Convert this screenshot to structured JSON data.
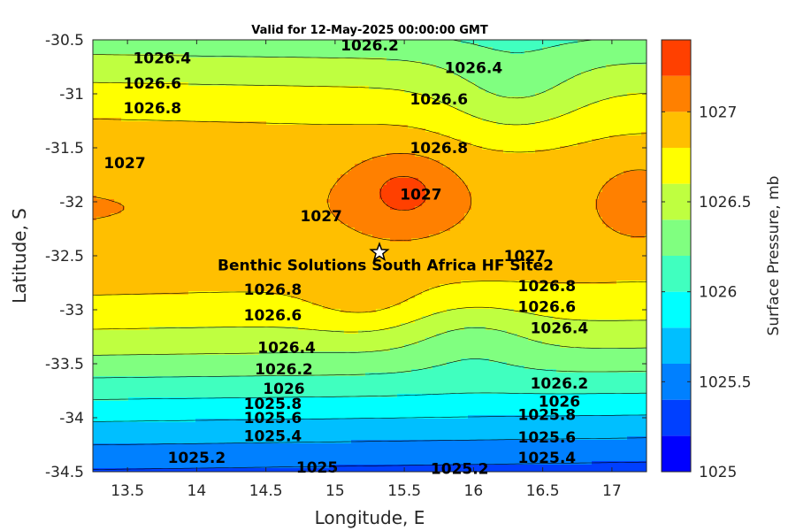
{
  "chart_data": {
    "type": "contour",
    "title": "Valid for 12-May-2025 00:00:00 GMT",
    "xlabel": "Longitude, E",
    "ylabel": "Latitude, S",
    "xlim": [
      13.25,
      17.25
    ],
    "ylim": [
      -34.5,
      -30.5
    ],
    "x_ticks": [
      "13.5",
      "14",
      "14.5",
      "15",
      "15.5",
      "16",
      "16.5",
      "17"
    ],
    "y_ticks": [
      "-30.5",
      "-31",
      "-31.5",
      "-32",
      "-32.5",
      "-33",
      "-33.5",
      "-34",
      "-34.5"
    ],
    "colorbar": {
      "label": "Surface Pressure, mb",
      "range": [
        1025,
        1027.4
      ],
      "ticks": [
        "1025",
        "1025.5",
        "1026",
        "1026.5",
        "1027"
      ],
      "levels": [
        1025,
        1025.2,
        1025.4,
        1025.6,
        1025.8,
        1026,
        1026.2,
        1026.4,
        1026.6,
        1026.8,
        1027,
        1027.2,
        1027.4
      ],
      "colors": [
        "#0000ff",
        "#0040ff",
        "#0080ff",
        "#00bfff",
        "#00ffff",
        "#40ffbf",
        "#80ff80",
        "#bfff40",
        "#ffff00",
        "#ffbf00",
        "#ff8000",
        "#ff4000",
        "#ff0000"
      ]
    },
    "contour_labels": [
      {
        "text": "1026.2",
        "lon": 15.25,
        "lat": -30.55
      },
      {
        "text": "1026.4",
        "lon": 13.75,
        "lat": -30.67
      },
      {
        "text": "1026.4",
        "lon": 16.0,
        "lat": -30.76
      },
      {
        "text": "1026.6",
        "lon": 13.68,
        "lat": -30.9
      },
      {
        "text": "1026.6",
        "lon": 15.75,
        "lat": -31.05
      },
      {
        "text": "1026.8",
        "lon": 13.68,
        "lat": -31.13
      },
      {
        "text": "1026.8",
        "lon": 15.75,
        "lat": -31.5
      },
      {
        "text": "1027",
        "lon": 13.48,
        "lat": -31.64
      },
      {
        "text": "1027",
        "lon": 15.62,
        "lat": -31.93
      },
      {
        "text": "1027",
        "lon": 14.9,
        "lat": -32.13
      },
      {
        "text": "1027",
        "lon": 16.37,
        "lat": -32.5
      },
      {
        "text": "1026.8",
        "lon": 14.55,
        "lat": -32.81
      },
      {
        "text": "1026.8",
        "lon": 16.53,
        "lat": -32.78
      },
      {
        "text": "1026.6",
        "lon": 14.55,
        "lat": -33.05
      },
      {
        "text": "1026.6",
        "lon": 16.53,
        "lat": -32.97
      },
      {
        "text": "1026.4",
        "lon": 14.65,
        "lat": -33.35
      },
      {
        "text": "1026.4",
        "lon": 16.62,
        "lat": -33.17
      },
      {
        "text": "1026.2",
        "lon": 14.63,
        "lat": -33.55
      },
      {
        "text": "1026.2",
        "lon": 16.62,
        "lat": -33.68
      },
      {
        "text": "1026",
        "lon": 14.63,
        "lat": -33.73
      },
      {
        "text": "1026",
        "lon": 16.62,
        "lat": -33.85
      },
      {
        "text": "1025.8",
        "lon": 14.55,
        "lat": -33.87
      },
      {
        "text": "1025.8",
        "lon": 16.53,
        "lat": -33.97
      },
      {
        "text": "1025.6",
        "lon": 14.55,
        "lat": -34.0
      },
      {
        "text": "1025.6",
        "lon": 16.53,
        "lat": -34.18
      },
      {
        "text": "1025.4",
        "lon": 14.55,
        "lat": -34.17
      },
      {
        "text": "1025.4",
        "lon": 16.53,
        "lat": -34.37
      },
      {
        "text": "1025.2",
        "lon": 14.0,
        "lat": -34.37
      },
      {
        "text": "1025.2",
        "lon": 15.9,
        "lat": -34.47
      },
      {
        "text": "1025",
        "lon": 14.87,
        "lat": -34.46
      }
    ],
    "site": {
      "name": "Benthic Solutions South Africa HF Site2",
      "lon": 15.32,
      "lat": -32.47
    }
  }
}
